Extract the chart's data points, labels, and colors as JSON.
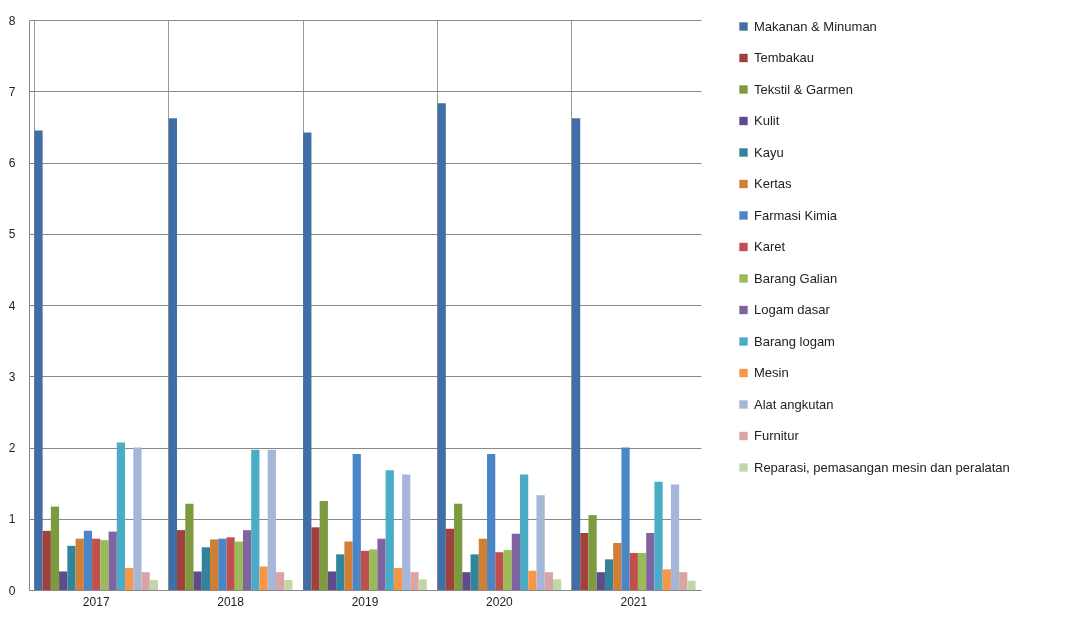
{
  "chart_data": {
    "type": "bar",
    "categories": [
      "2017",
      "2018",
      "2019",
      "2020",
      "2021"
    ],
    "series": [
      {
        "name": "Makanan & Minuman",
        "color": "#3f6fa6",
        "values": [
          6.45,
          6.62,
          6.42,
          6.83,
          6.62
        ]
      },
      {
        "name": "Tembakau",
        "color": "#a0413c",
        "values": [
          0.83,
          0.84,
          0.88,
          0.86,
          0.8
        ]
      },
      {
        "name": "Tekstil & Garmen",
        "color": "#7d9a3e",
        "values": [
          1.17,
          1.21,
          1.25,
          1.21,
          1.05
        ]
      },
      {
        "name": "Kulit",
        "color": "#5f4a8b",
        "values": [
          0.26,
          0.26,
          0.26,
          0.25,
          0.25
        ]
      },
      {
        "name": "Kayu",
        "color": "#31849b",
        "values": [
          0.62,
          0.6,
          0.5,
          0.5,
          0.43
        ]
      },
      {
        "name": "Kertas",
        "color": "#d07f35",
        "values": [
          0.72,
          0.71,
          0.68,
          0.72,
          0.66
        ]
      },
      {
        "name": "Farmasi Kimia",
        "color": "#4a86c6",
        "values": [
          0.83,
          0.72,
          1.91,
          1.91,
          2.0
        ]
      },
      {
        "name": "Karet",
        "color": "#c0504d",
        "values": [
          0.72,
          0.74,
          0.55,
          0.53,
          0.52
        ]
      },
      {
        "name": "Barang Galian",
        "color": "#9bbb59",
        "values": [
          0.7,
          0.68,
          0.57,
          0.56,
          0.52
        ]
      },
      {
        "name": "Logam dasar",
        "color": "#8064a2",
        "values": [
          0.82,
          0.84,
          0.72,
          0.79,
          0.8
        ]
      },
      {
        "name": "Barang logam",
        "color": "#4bacc6",
        "values": [
          2.07,
          1.97,
          1.68,
          1.62,
          1.52
        ]
      },
      {
        "name": "Mesin",
        "color": "#f79646",
        "values": [
          0.31,
          0.33,
          0.31,
          0.27,
          0.29
        ]
      },
      {
        "name": "Alat angkutan",
        "color": "#a5b6d8",
        "values": [
          2.0,
          1.97,
          1.62,
          1.33,
          1.48
        ]
      },
      {
        "name": "Furnitur",
        "color": "#d9a5a4",
        "values": [
          0.25,
          0.25,
          0.25,
          0.25,
          0.25
        ]
      },
      {
        "name": "Reparasi, pemasangan mesin dan peralatan",
        "color": "#c4d6a8",
        "values": [
          0.14,
          0.14,
          0.15,
          0.15,
          0.13
        ]
      }
    ],
    "ylim": [
      0,
      8
    ],
    "yticks": [
      0,
      1,
      2,
      3,
      4,
      5,
      6,
      7,
      8
    ],
    "grid": true,
    "legend": "right"
  }
}
